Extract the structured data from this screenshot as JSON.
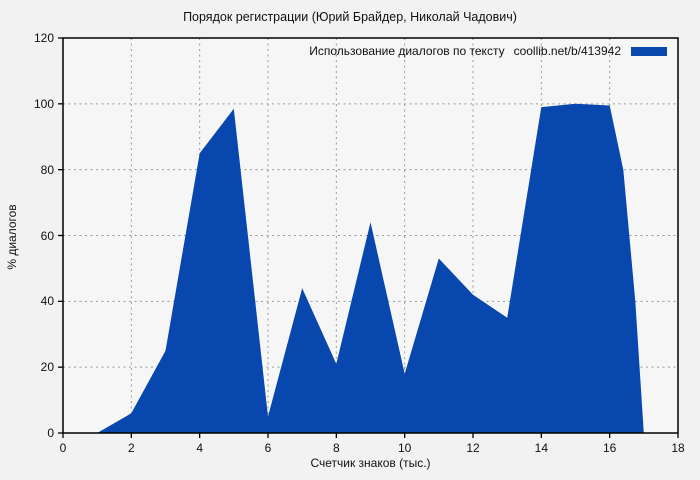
{
  "colors": {
    "fill": "#0847ae",
    "page_bg": "#f2f2f2",
    "plot_bg": "#f6f6f6",
    "grid": "#999999",
    "axis": "#000000"
  },
  "chart_data": {
    "type": "area",
    "title": "Порядок регистрации (Юрий Брайдер, Николай Чадович)",
    "legend": {
      "label": "Использование диалогов по тексту",
      "link": "coollib.net/b/413942",
      "position": "top-right-inside",
      "swatch_color": "#0847ae"
    },
    "xlabel": "Счетчик знаков (тыс.)",
    "ylabel": "% диалогов",
    "xlim": [
      0,
      18
    ],
    "ylim": [
      0,
      120
    ],
    "xticks": [
      0,
      2,
      4,
      6,
      8,
      10,
      12,
      14,
      16,
      18
    ],
    "yticks": [
      0,
      20,
      40,
      60,
      80,
      100,
      120
    ],
    "grid": true,
    "series": [
      {
        "name": "Использование диалогов по тексту",
        "color": "#0847ae",
        "points": [
          [
            1,
            0
          ],
          [
            2,
            6
          ],
          [
            3,
            25
          ],
          [
            4,
            85
          ],
          [
            5,
            98.5
          ],
          [
            6,
            5
          ],
          [
            7,
            44
          ],
          [
            8,
            21
          ],
          [
            9,
            64
          ],
          [
            10,
            18
          ],
          [
            11,
            53
          ],
          [
            12,
            42
          ],
          [
            13,
            35
          ],
          [
            14,
            99
          ],
          [
            15,
            100
          ],
          [
            16,
            99.5
          ],
          [
            16.4,
            80
          ],
          [
            16.75,
            40
          ],
          [
            17,
            0
          ]
        ]
      }
    ]
  }
}
